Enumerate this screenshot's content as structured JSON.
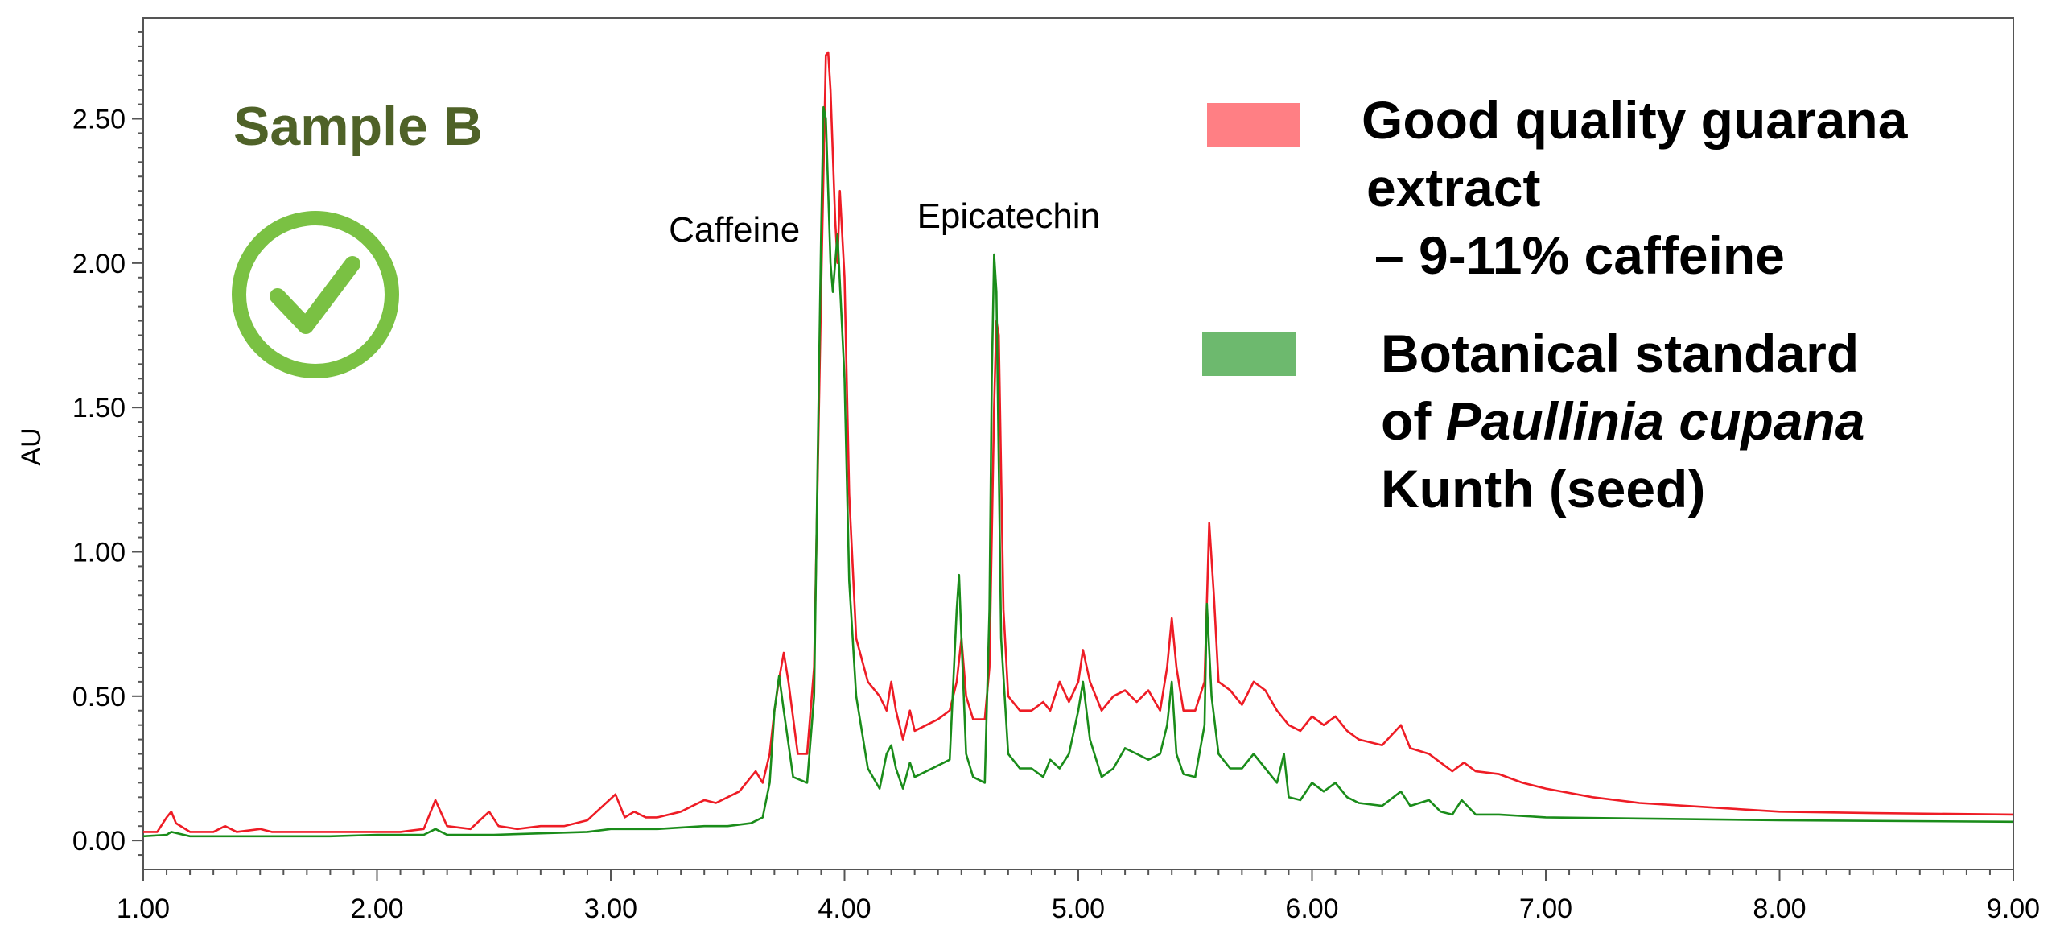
{
  "chart_data": {
    "type": "line",
    "title": "Sample B",
    "xlabel": "",
    "ylabel": "AU",
    "xlim": [
      1.0,
      9.0
    ],
    "ylim": [
      -0.1,
      2.85
    ],
    "x_ticks": [
      "1.00",
      "2.00",
      "3.00",
      "4.00",
      "5.00",
      "6.00",
      "7.00",
      "8.00",
      "9.00"
    ],
    "y_ticks": [
      "0.00",
      "0.50",
      "1.00",
      "1.50",
      "2.00",
      "2.50"
    ],
    "annotations": [
      {
        "text": "Caffeine",
        "x": 3.92,
        "y": 2.74
      },
      {
        "text": "Epicatechin",
        "x": 4.65,
        "y": 2.03
      }
    ],
    "legend": [
      {
        "lines": [
          "Good quality guarana",
          "extract",
          "– 9-11% caffeine"
        ],
        "color": "#ff7f84"
      },
      {
        "lines": [
          "Botanical standard",
          "of Paullinia cupana",
          "Kunth (seed)"
        ],
        "italic": "Paullinia cupana",
        "color": "#6db96e"
      }
    ],
    "series": [
      {
        "name": "Good quality guarana extract – 9-11% caffeine",
        "color": "#ee1c25",
        "points": [
          [
            1.0,
            0.03
          ],
          [
            1.06,
            0.03
          ],
          [
            1.1,
            0.08
          ],
          [
            1.12,
            0.1
          ],
          [
            1.14,
            0.06
          ],
          [
            1.2,
            0.03
          ],
          [
            1.3,
            0.03
          ],
          [
            1.35,
            0.05
          ],
          [
            1.4,
            0.03
          ],
          [
            1.5,
            0.04
          ],
          [
            1.55,
            0.03
          ],
          [
            1.6,
            0.03
          ],
          [
            1.7,
            0.03
          ],
          [
            1.8,
            0.03
          ],
          [
            1.9,
            0.03
          ],
          [
            2.0,
            0.03
          ],
          [
            2.1,
            0.03
          ],
          [
            2.2,
            0.04
          ],
          [
            2.25,
            0.14
          ],
          [
            2.3,
            0.05
          ],
          [
            2.4,
            0.04
          ],
          [
            2.48,
            0.1
          ],
          [
            2.52,
            0.05
          ],
          [
            2.6,
            0.04
          ],
          [
            2.7,
            0.05
          ],
          [
            2.8,
            0.05
          ],
          [
            2.9,
            0.07
          ],
          [
            2.98,
            0.13
          ],
          [
            3.02,
            0.16
          ],
          [
            3.06,
            0.08
          ],
          [
            3.1,
            0.1
          ],
          [
            3.15,
            0.08
          ],
          [
            3.2,
            0.08
          ],
          [
            3.3,
            0.1
          ],
          [
            3.35,
            0.12
          ],
          [
            3.4,
            0.14
          ],
          [
            3.45,
            0.13
          ],
          [
            3.5,
            0.15
          ],
          [
            3.55,
            0.17
          ],
          [
            3.6,
            0.22
          ],
          [
            3.62,
            0.24
          ],
          [
            3.65,
            0.2
          ],
          [
            3.68,
            0.3
          ],
          [
            3.7,
            0.45
          ],
          [
            3.72,
            0.56
          ],
          [
            3.74,
            0.65
          ],
          [
            3.76,
            0.55
          ],
          [
            3.8,
            0.3
          ],
          [
            3.84,
            0.3
          ],
          [
            3.87,
            0.6
          ],
          [
            3.9,
            1.9
          ],
          [
            3.92,
            2.72
          ],
          [
            3.93,
            2.73
          ],
          [
            3.94,
            2.6
          ],
          [
            3.96,
            2.15
          ],
          [
            3.97,
            2.0
          ],
          [
            3.98,
            2.25
          ],
          [
            4.0,
            1.95
          ],
          [
            4.02,
            1.2
          ],
          [
            4.05,
            0.7
          ],
          [
            4.1,
            0.55
          ],
          [
            4.15,
            0.5
          ],
          [
            4.18,
            0.45
          ],
          [
            4.2,
            0.55
          ],
          [
            4.22,
            0.45
          ],
          [
            4.25,
            0.35
          ],
          [
            4.28,
            0.45
          ],
          [
            4.3,
            0.38
          ],
          [
            4.35,
            0.4
          ],
          [
            4.4,
            0.42
          ],
          [
            4.45,
            0.45
          ],
          [
            4.48,
            0.55
          ],
          [
            4.5,
            0.7
          ],
          [
            4.52,
            0.5
          ],
          [
            4.55,
            0.42
          ],
          [
            4.6,
            0.42
          ],
          [
            4.62,
            0.6
          ],
          [
            4.64,
            1.5
          ],
          [
            4.65,
            1.8
          ],
          [
            4.66,
            1.75
          ],
          [
            4.68,
            0.8
          ],
          [
            4.7,
            0.5
          ],
          [
            4.75,
            0.45
          ],
          [
            4.8,
            0.45
          ],
          [
            4.85,
            0.48
          ],
          [
            4.88,
            0.45
          ],
          [
            4.92,
            0.55
          ],
          [
            4.96,
            0.48
          ],
          [
            5.0,
            0.55
          ],
          [
            5.02,
            0.66
          ],
          [
            5.05,
            0.55
          ],
          [
            5.1,
            0.45
          ],
          [
            5.15,
            0.5
          ],
          [
            5.2,
            0.52
          ],
          [
            5.25,
            0.48
          ],
          [
            5.3,
            0.52
          ],
          [
            5.35,
            0.45
          ],
          [
            5.38,
            0.6
          ],
          [
            5.4,
            0.77
          ],
          [
            5.42,
            0.6
          ],
          [
            5.45,
            0.45
          ],
          [
            5.5,
            0.45
          ],
          [
            5.54,
            0.55
          ],
          [
            5.56,
            1.1
          ],
          [
            5.58,
            0.85
          ],
          [
            5.6,
            0.55
          ],
          [
            5.65,
            0.52
          ],
          [
            5.7,
            0.47
          ],
          [
            5.75,
            0.55
          ],
          [
            5.8,
            0.52
          ],
          [
            5.85,
            0.45
          ],
          [
            5.9,
            0.4
          ],
          [
            5.95,
            0.38
          ],
          [
            6.0,
            0.43
          ],
          [
            6.05,
            0.4
          ],
          [
            6.1,
            0.43
          ],
          [
            6.15,
            0.38
          ],
          [
            6.2,
            0.35
          ],
          [
            6.3,
            0.33
          ],
          [
            6.38,
            0.4
          ],
          [
            6.42,
            0.32
          ],
          [
            6.5,
            0.3
          ],
          [
            6.55,
            0.27
          ],
          [
            6.6,
            0.24
          ],
          [
            6.65,
            0.27
          ],
          [
            6.7,
            0.24
          ],
          [
            6.8,
            0.23
          ],
          [
            6.9,
            0.2
          ],
          [
            7.0,
            0.18
          ],
          [
            7.2,
            0.15
          ],
          [
            7.4,
            0.13
          ],
          [
            7.6,
            0.12
          ],
          [
            7.8,
            0.11
          ],
          [
            8.0,
            0.1
          ],
          [
            8.4,
            0.095
          ],
          [
            9.0,
            0.09
          ]
        ]
      },
      {
        "name": "Botanical standard of Paullinia cupana Kunth (seed)",
        "color": "#1a8c1a",
        "points": [
          [
            1.0,
            0.015
          ],
          [
            1.1,
            0.02
          ],
          [
            1.12,
            0.03
          ],
          [
            1.2,
            0.015
          ],
          [
            1.4,
            0.015
          ],
          [
            1.6,
            0.015
          ],
          [
            1.8,
            0.015
          ],
          [
            2.0,
            0.02
          ],
          [
            2.2,
            0.02
          ],
          [
            2.25,
            0.04
          ],
          [
            2.3,
            0.02
          ],
          [
            2.5,
            0.02
          ],
          [
            2.7,
            0.025
          ],
          [
            2.9,
            0.03
          ],
          [
            3.0,
            0.04
          ],
          [
            3.2,
            0.04
          ],
          [
            3.4,
            0.05
          ],
          [
            3.5,
            0.05
          ],
          [
            3.6,
            0.06
          ],
          [
            3.65,
            0.08
          ],
          [
            3.68,
            0.2
          ],
          [
            3.7,
            0.45
          ],
          [
            3.72,
            0.57
          ],
          [
            3.74,
            0.45
          ],
          [
            3.78,
            0.22
          ],
          [
            3.84,
            0.2
          ],
          [
            3.87,
            0.5
          ],
          [
            3.9,
            2.1
          ],
          [
            3.91,
            2.54
          ],
          [
            3.92,
            2.5
          ],
          [
            3.94,
            2.0
          ],
          [
            3.95,
            1.9
          ],
          [
            3.97,
            2.1
          ],
          [
            4.0,
            1.6
          ],
          [
            4.02,
            0.9
          ],
          [
            4.05,
            0.5
          ],
          [
            4.1,
            0.25
          ],
          [
            4.15,
            0.18
          ],
          [
            4.18,
            0.3
          ],
          [
            4.2,
            0.33
          ],
          [
            4.22,
            0.25
          ],
          [
            4.25,
            0.18
          ],
          [
            4.28,
            0.27
          ],
          [
            4.3,
            0.22
          ],
          [
            4.35,
            0.24
          ],
          [
            4.4,
            0.26
          ],
          [
            4.45,
            0.28
          ],
          [
            4.48,
            0.8
          ],
          [
            4.49,
            0.92
          ],
          [
            4.5,
            0.7
          ],
          [
            4.52,
            0.3
          ],
          [
            4.55,
            0.22
          ],
          [
            4.6,
            0.2
          ],
          [
            4.62,
            0.8
          ],
          [
            4.63,
            1.6
          ],
          [
            4.64,
            2.03
          ],
          [
            4.65,
            1.9
          ],
          [
            4.67,
            0.7
          ],
          [
            4.7,
            0.3
          ],
          [
            4.75,
            0.25
          ],
          [
            4.8,
            0.25
          ],
          [
            4.85,
            0.22
          ],
          [
            4.88,
            0.28
          ],
          [
            4.92,
            0.25
          ],
          [
            4.96,
            0.3
          ],
          [
            5.0,
            0.45
          ],
          [
            5.02,
            0.55
          ],
          [
            5.05,
            0.35
          ],
          [
            5.1,
            0.22
          ],
          [
            5.15,
            0.25
          ],
          [
            5.2,
            0.32
          ],
          [
            5.25,
            0.3
          ],
          [
            5.3,
            0.28
          ],
          [
            5.35,
            0.3
          ],
          [
            5.38,
            0.4
          ],
          [
            5.4,
            0.55
          ],
          [
            5.42,
            0.3
          ],
          [
            5.45,
            0.23
          ],
          [
            5.5,
            0.22
          ],
          [
            5.54,
            0.4
          ],
          [
            5.55,
            0.82
          ],
          [
            5.57,
            0.5
          ],
          [
            5.6,
            0.3
          ],
          [
            5.65,
            0.25
          ],
          [
            5.7,
            0.25
          ],
          [
            5.75,
            0.3
          ],
          [
            5.8,
            0.25
          ],
          [
            5.85,
            0.2
          ],
          [
            5.88,
            0.3
          ],
          [
            5.9,
            0.15
          ],
          [
            5.95,
            0.14
          ],
          [
            6.0,
            0.2
          ],
          [
            6.05,
            0.17
          ],
          [
            6.1,
            0.2
          ],
          [
            6.15,
            0.15
          ],
          [
            6.2,
            0.13
          ],
          [
            6.3,
            0.12
          ],
          [
            6.38,
            0.17
          ],
          [
            6.42,
            0.12
          ],
          [
            6.5,
            0.14
          ],
          [
            6.55,
            0.1
          ],
          [
            6.6,
            0.09
          ],
          [
            6.64,
            0.14
          ],
          [
            6.7,
            0.09
          ],
          [
            6.8,
            0.09
          ],
          [
            7.0,
            0.08
          ],
          [
            7.5,
            0.075
          ],
          [
            8.0,
            0.07
          ],
          [
            9.0,
            0.065
          ]
        ]
      }
    ]
  }
}
